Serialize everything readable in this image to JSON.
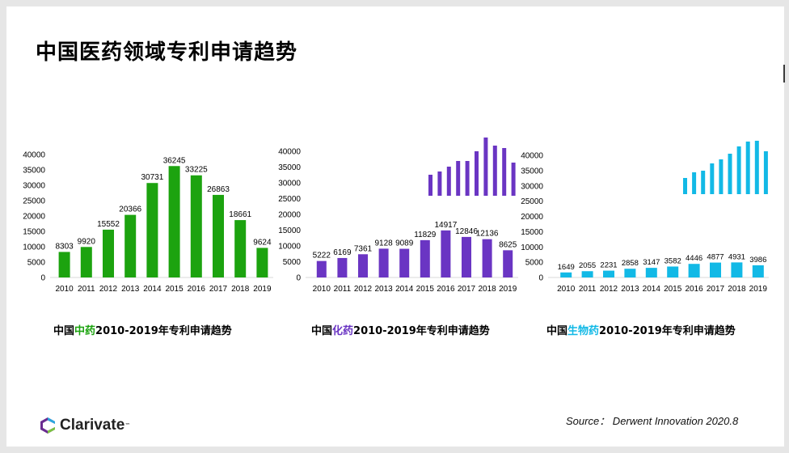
{
  "title": "中国医药领域专利申请趋势",
  "source": "Source： Derwent Innovation 2020.8",
  "brand": {
    "name": "Clarivate",
    "trademark": "™"
  },
  "colors": {
    "tcm": "#1ca30f",
    "chemical": "#6a35c3",
    "bio": "#12b9e6"
  },
  "chart_data": [
    {
      "type": "bar",
      "caption": {
        "prefix": "中国",
        "highlight": "中药",
        "suffix": "2010-2019年专利申请趋势"
      },
      "categories": [
        "2010",
        "2011",
        "2012",
        "2013",
        "2014",
        "2015",
        "2016",
        "2017",
        "2018",
        "2019"
      ],
      "values": [
        8303,
        9920,
        15552,
        20366,
        30731,
        36245,
        33225,
        26863,
        18661,
        9624
      ],
      "ylim": [
        0,
        40000
      ],
      "yticks": [
        0,
        5000,
        10000,
        15000,
        20000,
        25000,
        30000,
        35000,
        40000
      ],
      "color": "#1ca30f",
      "has_decor_bars": false
    },
    {
      "type": "bar",
      "caption": {
        "prefix": "中国",
        "highlight": "化药",
        "suffix": "2010-2019年专利申请趋势"
      },
      "categories": [
        "2010",
        "2011",
        "2012",
        "2013",
        "2014",
        "2015",
        "2016",
        "2017",
        "2018",
        "2019"
      ],
      "values": [
        5222,
        6169,
        7361,
        9128,
        9089,
        11829,
        14917,
        12846,
        12136,
        8625
      ],
      "ylim": [
        0,
        40000
      ],
      "yticks": [
        0,
        5000,
        10000,
        15000,
        20000,
        25000,
        30000,
        35000,
        40000
      ],
      "color": "#6a35c3",
      "has_decor_bars": true
    },
    {
      "type": "bar",
      "caption": {
        "prefix": "中国",
        "highlight": "生物药",
        "suffix": "2010-2019年专利申请趋势"
      },
      "categories": [
        "2010",
        "2011",
        "2012",
        "2013",
        "2014",
        "2015",
        "2016",
        "2017",
        "2018",
        "2019"
      ],
      "values": [
        1649,
        2055,
        2231,
        2858,
        3147,
        3582,
        4446,
        4877,
        4931,
        3986
      ],
      "ylim": [
        0,
        40000
      ],
      "yticks": [
        0,
        5000,
        10000,
        15000,
        20000,
        25000,
        30000,
        35000,
        40000
      ],
      "color": "#12b9e6",
      "has_decor_bars": true
    }
  ]
}
